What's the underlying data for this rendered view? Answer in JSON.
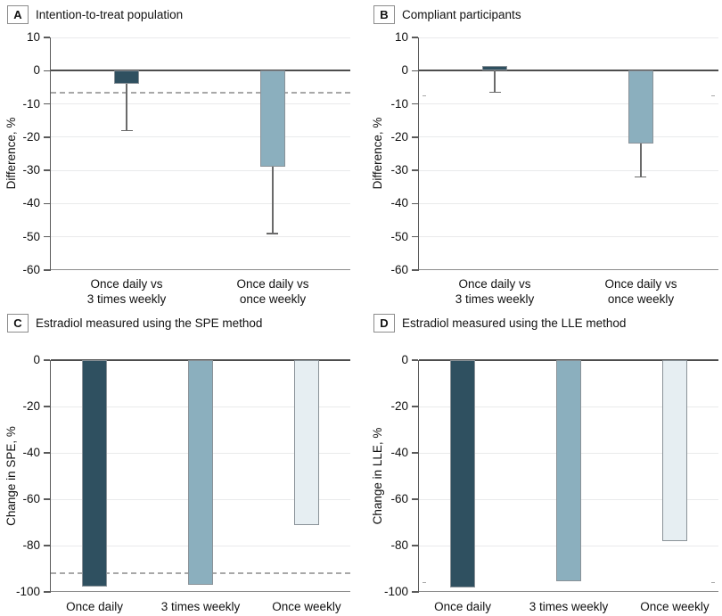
{
  "colors": {
    "dark": "#2F5060",
    "medium": "#8BAFBE",
    "light": "#E6EEF2",
    "bar_border": "#8A9298",
    "gridline": "#E9EAEB",
    "zero_line": "#4D4D4D",
    "axis": "#5A5A5A",
    "frame": "#8C8C8C",
    "dashed_line": "#A8A8A8",
    "error_bar": "#6A6A6A",
    "text": "#111111"
  },
  "chart_data": [
    {
      "panel": "A",
      "title": "Intention-to-treat population",
      "type": "bar",
      "ylabel": "Difference, %",
      "xlabel": "",
      "ylim": [
        -60,
        10
      ],
      "yticks": [
        10,
        0,
        -10,
        -20,
        -30,
        -40,
        -50,
        -60
      ],
      "grid": true,
      "legend": "none",
      "categories": [
        "Once daily vs\n3 times weekly",
        "Once daily vs\nonce weekly"
      ],
      "values": [
        -4,
        -29
      ],
      "error_low": [
        -18,
        -49
      ],
      "bar_colors": [
        "dark",
        "medium"
      ],
      "dashed_line_y": -6.5
    },
    {
      "panel": "B",
      "title": "Compliant participants",
      "type": "bar",
      "ylabel": "Difference, %",
      "xlabel": "",
      "ylim": [
        -60,
        10
      ],
      "yticks": [
        10,
        0,
        -10,
        -20,
        -30,
        -40,
        -50,
        -60
      ],
      "grid": true,
      "legend": "none",
      "categories": [
        "Once daily vs\n3 times weekly",
        "Once daily vs\nonce weekly"
      ],
      "values": [
        1.3,
        -22
      ],
      "error_low": [
        -6.5,
        -32
      ],
      "bar_colors": [
        "dark",
        "medium"
      ],
      "edge_dash_y": -7.5
    },
    {
      "panel": "C",
      "title": "Estradiol measured using the SPE method",
      "type": "bar",
      "ylabel": "Change in SPE, %",
      "xlabel": "",
      "ylim": [
        -100,
        0
      ],
      "yticks": [
        0,
        -20,
        -40,
        -60,
        -80,
        -100
      ],
      "grid": true,
      "legend": "none",
      "categories": [
        "Once daily",
        "3 times weekly",
        "Once weekly"
      ],
      "values": [
        -97.5,
        -97,
        -71
      ],
      "bar_colors": [
        "dark",
        "medium",
        "light"
      ],
      "dashed_line_y": -92
    },
    {
      "panel": "D",
      "title": "Estradiol measured using the LLE method",
      "type": "bar",
      "ylabel": "Change in LLE, %",
      "xlabel": "",
      "ylim": [
        -100,
        0
      ],
      "yticks": [
        0,
        -20,
        -40,
        -60,
        -80,
        -100
      ],
      "grid": true,
      "legend": "none",
      "categories": [
        "Once daily",
        "3 times weekly",
        "Once weekly"
      ],
      "values": [
        -98,
        -95.5,
        -78
      ],
      "bar_colors": [
        "dark",
        "medium",
        "light"
      ],
      "edge_dash_y": -96
    }
  ]
}
